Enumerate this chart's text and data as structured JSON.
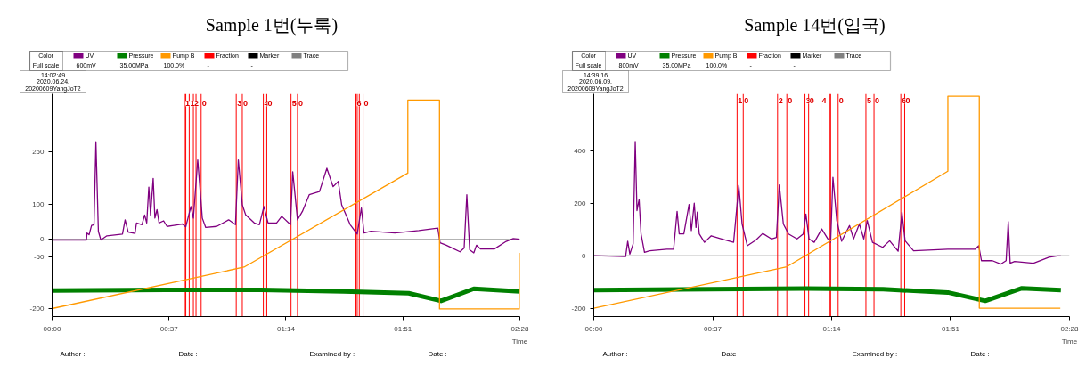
{
  "chart_data": [
    {
      "type": "line",
      "title": "Sample 1번(누룩)",
      "xlabel": "Time",
      "legend": "top left",
      "grid": false,
      "marker": "none",
      "line_style": "solid",
      "xlim": [
        0,
        2.4667
      ],
      "xticks": [
        {
          "value": 0,
          "label": "00:00"
        },
        {
          "value": 0.6167,
          "label": "00:37"
        },
        {
          "value": 1.2333,
          "label": "01:14"
        },
        {
          "value": 1.85,
          "label": "01:51"
        },
        {
          "value": 2.4667,
          "label": "02:28"
        }
      ],
      "ylim": [
        -222,
        420
      ],
      "yticks": [
        -200,
        -50,
        0,
        100,
        250
      ],
      "annotations": [
        "Color",
        "Full scale",
        "600mV",
        "35.00MPa",
        "100.0%",
        "-",
        "-",
        "14:02:49",
        "2020.06.24.",
        "20200609YangJoT2",
        "Author :",
        "Date :",
        "Examined by :",
        "Date :",
        {
          "text": "1",
          "x": 0.698,
          "y": 390
        },
        {
          "text": "1",
          "x": 0.723,
          "y": 390
        },
        {
          "text": "2",
          "x": 0.745,
          "y": 390
        },
        {
          "text": "0",
          "x": 0.786,
          "y": 390
        },
        {
          "text": "3",
          "x": 0.971,
          "y": 390
        },
        {
          "text": "0",
          "x": 1.003,
          "y": 390
        },
        {
          "text": "4",
          "x": 1.114,
          "y": 390
        },
        {
          "text": "0",
          "x": 1.132,
          "y": 390
        },
        {
          "text": "5",
          "x": 1.26,
          "y": 390
        },
        {
          "text": "0",
          "x": 1.294,
          "y": 390
        },
        {
          "text": "6",
          "x": 1.602,
          "y": 390
        },
        {
          "text": "0",
          "x": 1.64,
          "y": 390
        }
      ],
      "ref_lines": [
        {
          "axis": "y",
          "value": 0,
          "color": "#a0a0a0"
        },
        {
          "axis": "x",
          "value": 0.698,
          "color": "#ff0000"
        },
        {
          "axis": "x",
          "value": 0.705,
          "color": "#ff0000"
        },
        {
          "axis": "x",
          "value": 0.723,
          "color": "#ff0000"
        },
        {
          "axis": "x",
          "value": 0.745,
          "color": "#ff0000"
        },
        {
          "axis": "x",
          "value": 0.759,
          "color": "#ff0000"
        },
        {
          "axis": "x",
          "value": 0.786,
          "color": "#ff0000"
        },
        {
          "axis": "x",
          "value": 0.971,
          "color": "#ff0000"
        },
        {
          "axis": "x",
          "value": 1.003,
          "color": "#ff0000"
        },
        {
          "axis": "x",
          "value": 1.114,
          "color": "#ff0000"
        },
        {
          "axis": "x",
          "value": 1.132,
          "color": "#ff0000"
        },
        {
          "axis": "x",
          "value": 1.26,
          "color": "#ff0000"
        },
        {
          "axis": "x",
          "value": 1.294,
          "color": "#ff0000"
        },
        {
          "axis": "x",
          "value": 1.602,
          "color": "#ff0000"
        },
        {
          "axis": "x",
          "value": 1.609,
          "color": "#ff0000"
        },
        {
          "axis": "x",
          "value": 1.62,
          "color": "#ff0000"
        },
        {
          "axis": "x",
          "value": 1.64,
          "color": "#ff0000"
        }
      ],
      "series": [
        {
          "name": "UV",
          "color": "#800080",
          "x": [
            0,
            0.181,
            0.184,
            0.195,
            0.208,
            0.221,
            0.231,
            0.244,
            0.257,
            0.289,
            0.371,
            0.385,
            0.401,
            0.437,
            0.445,
            0.474,
            0.488,
            0.499,
            0.51,
            0.519,
            0.533,
            0.542,
            0.553,
            0.564,
            0.588,
            0.606,
            0.642,
            0.687,
            0.705,
            0.732,
            0.745,
            0.768,
            0.792,
            0.81,
            0.868,
            0.931,
            0.967,
            0.982,
            1.003,
            1.021,
            1.066,
            1.093,
            1.117,
            1.139,
            1.184,
            1.211,
            1.257,
            1.269,
            1.294,
            1.32,
            1.356,
            1.41,
            1.449,
            1.482,
            1.509,
            1.527,
            1.572,
            1.609,
            1.631,
            1.645,
            1.681,
            1.808,
            1.934,
            2.034,
            2.046,
            2.079,
            2.151,
            2.173,
            2.187,
            2.202,
            2.224,
            2.238,
            2.26,
            2.332,
            2.395,
            2.432,
            2.466
          ],
          "values": [
            -2,
            -2,
            18,
            13,
            40,
            42,
            280,
            23,
            -2,
            10,
            15,
            56,
            21,
            17,
            47,
            42,
            70,
            47,
            150,
            70,
            175,
            61,
            85,
            47,
            53,
            37,
            40,
            44,
            36,
            94,
            61,
            228,
            61,
            34,
            37,
            56,
            42,
            228,
            99,
            70,
            47,
            42,
            94,
            47,
            47,
            66,
            42,
            194,
            56,
            80,
            128,
            137,
            204,
            151,
            166,
            99,
            42,
            15,
            90,
            18,
            23,
            18,
            25,
            32,
            -10,
            -17,
            -36,
            -25,
            128,
            -30,
            -39,
            -17,
            -28,
            -28,
            -6,
            2,
            0
          ]
        },
        {
          "name": "Pressure",
          "color": "#008000",
          "x": [
            0,
            0.6,
            1.1,
            1.536,
            1.88,
            2.051,
            2.224,
            2.466
          ],
          "values": [
            -147,
            -145,
            -145,
            -150,
            -155,
            -177,
            -142,
            -150
          ]
        },
        {
          "name": "Pump B",
          "color": "#ff9900",
          "x": [
            0,
            1.012,
            1.876,
            1.876,
            2.043,
            2.043,
            2.466,
            2.466
          ],
          "values": [
            -199,
            -80,
            190,
            400,
            400,
            -200,
            -200,
            -39
          ]
        },
        {
          "name": "Fraction",
          "color": "#ff0000"
        },
        {
          "name": "Marker",
          "color": "#000000"
        },
        {
          "name": "Trace",
          "color": "#808080"
        }
      ]
    },
    {
      "type": "line",
      "title": "Sample 14번(입국)",
      "xlabel": "Time",
      "legend": "top left",
      "grid": false,
      "marker": "none",
      "line_style": "solid",
      "xlim": [
        0,
        2.4667
      ],
      "xticks": [
        {
          "value": 0,
          "label": "00:00"
        },
        {
          "value": 0.6167,
          "label": "00:37"
        },
        {
          "value": 1.2333,
          "label": "01:14"
        },
        {
          "value": 1.85,
          "label": "01:51"
        },
        {
          "value": 2.4667,
          "label": "02:28"
        }
      ],
      "ylim": [
        -232,
        620
      ],
      "yticks": [
        -200,
        0,
        200,
        400
      ],
      "annotations": [
        "Color",
        "Full scale",
        "800mV",
        "35.00MPa",
        "100.0%",
        "-",
        "-",
        "14:39:16",
        "2020.06.09.",
        "20200609YangJoT2",
        "Author :",
        "Date :",
        "Examined by :",
        "Date :",
        {
          "text": "1",
          "x": 0.743,
          "y": 590
        },
        {
          "text": "0",
          "x": 0.775,
          "y": 590
        },
        {
          "text": "2",
          "x": 0.953,
          "y": 590
        },
        {
          "text": "0",
          "x": 1.001,
          "y": 590
        },
        {
          "text": "3",
          "x": 1.095,
          "y": 590
        },
        {
          "text": "0",
          "x": 1.114,
          "y": 590
        },
        {
          "text": "4",
          "x": 1.178,
          "y": 590
        },
        {
          "text": "0",
          "x": 1.267,
          "y": 590
        },
        {
          "text": "5",
          "x": 1.411,
          "y": 590
        },
        {
          "text": "0",
          "x": 1.453,
          "y": 590
        },
        {
          "text": "6",
          "x": 1.592,
          "y": 590
        },
        {
          "text": "0",
          "x": 1.612,
          "y": 590
        }
      ],
      "ref_lines": [
        {
          "axis": "y",
          "value": 0,
          "color": "#a0a0a0"
        },
        {
          "axis": "x",
          "value": 0.743,
          "color": "#ff0000"
        },
        {
          "axis": "x",
          "value": 0.775,
          "color": "#ff0000"
        },
        {
          "axis": "x",
          "value": 0.953,
          "color": "#ff0000"
        },
        {
          "axis": "x",
          "value": 1.001,
          "color": "#ff0000"
        },
        {
          "axis": "x",
          "value": 1.095,
          "color": "#ff0000"
        },
        {
          "axis": "x",
          "value": 1.114,
          "color": "#ff0000"
        },
        {
          "axis": "x",
          "value": 1.178,
          "color": "#ff0000"
        },
        {
          "axis": "x",
          "value": 1.223,
          "color": "#ff0000"
        },
        {
          "axis": "x",
          "value": 1.228,
          "color": "#ff0000"
        },
        {
          "axis": "x",
          "value": 1.267,
          "color": "#ff0000"
        },
        {
          "axis": "x",
          "value": 1.411,
          "color": "#ff0000"
        },
        {
          "axis": "x",
          "value": 1.453,
          "color": "#ff0000"
        },
        {
          "axis": "x",
          "value": 1.592,
          "color": "#ff0000"
        },
        {
          "axis": "x",
          "value": 1.612,
          "color": "#ff0000"
        }
      ],
      "series": [
        {
          "name": "UV",
          "color": "#800080",
          "x": [
            0,
            0.165,
            0.176,
            0.187,
            0.204,
            0.215,
            0.224,
            0.235,
            0.245,
            0.263,
            0.29,
            0.379,
            0.414,
            0.432,
            0.443,
            0.467,
            0.494,
            0.506,
            0.521,
            0.53,
            0.537,
            0.547,
            0.574,
            0.609,
            0.663,
            0.725,
            0.752,
            0.769,
            0.796,
            0.841,
            0.876,
            0.921,
            0.947,
            0.962,
            0.983,
            1.01,
            1.054,
            1.086,
            1.1,
            1.116,
            1.143,
            1.182,
            1.214,
            1.228,
            1.24,
            1.26,
            1.285,
            1.326,
            1.347,
            1.377,
            1.4,
            1.418,
            1.445,
            1.498,
            1.534,
            1.578,
            1.598,
            1.614,
            1.658,
            1.836,
            1.978,
            1.996,
            2.01,
            2.067,
            2.111,
            2.138,
            2.149,
            2.159,
            2.182,
            2.28,
            2.36,
            2.404,
            2.422
          ],
          "values": [
            0,
            -3,
            55,
            6,
            45,
            435,
            172,
            214,
            83,
            13,
            19,
            25,
            25,
            169,
            83,
            83,
            195,
            96,
            200,
            108,
            166,
            83,
            51,
            76,
            64,
            51,
            268,
            121,
            38,
            60,
            85,
            64,
            70,
            270,
            121,
            83,
            64,
            83,
            159,
            64,
            51,
            102,
            64,
            51,
            299,
            134,
            55,
            115,
            64,
            121,
            64,
            134,
            51,
            32,
            57,
            17,
            166,
            57,
            19,
            25,
            25,
            38,
            -19,
            -19,
            -32,
            -19,
            130,
            -29,
            -22,
            -29,
            -6,
            -1,
            -1
          ]
        },
        {
          "name": "Pressure",
          "color": "#008000",
          "x": [
            0,
            0.6,
            1.1,
            1.5,
            1.836,
            2.03,
            2.22,
            2.422
          ],
          "values": [
            -131,
            -128,
            -125,
            -128,
            -140,
            -172,
            -124,
            -131
          ]
        },
        {
          "name": "Pump B",
          "color": "#ff9900",
          "x": [
            0,
            1.001,
            1.836,
            1.836,
            1.999,
            1.999,
            2.419
          ],
          "values": [
            -200,
            -42,
            322,
            608,
            608,
            -200,
            -200
          ]
        },
        {
          "name": "Fraction",
          "color": "#ff0000"
        },
        {
          "name": "Marker",
          "color": "#000000"
        },
        {
          "name": "Trace",
          "color": "#808080"
        }
      ]
    }
  ]
}
